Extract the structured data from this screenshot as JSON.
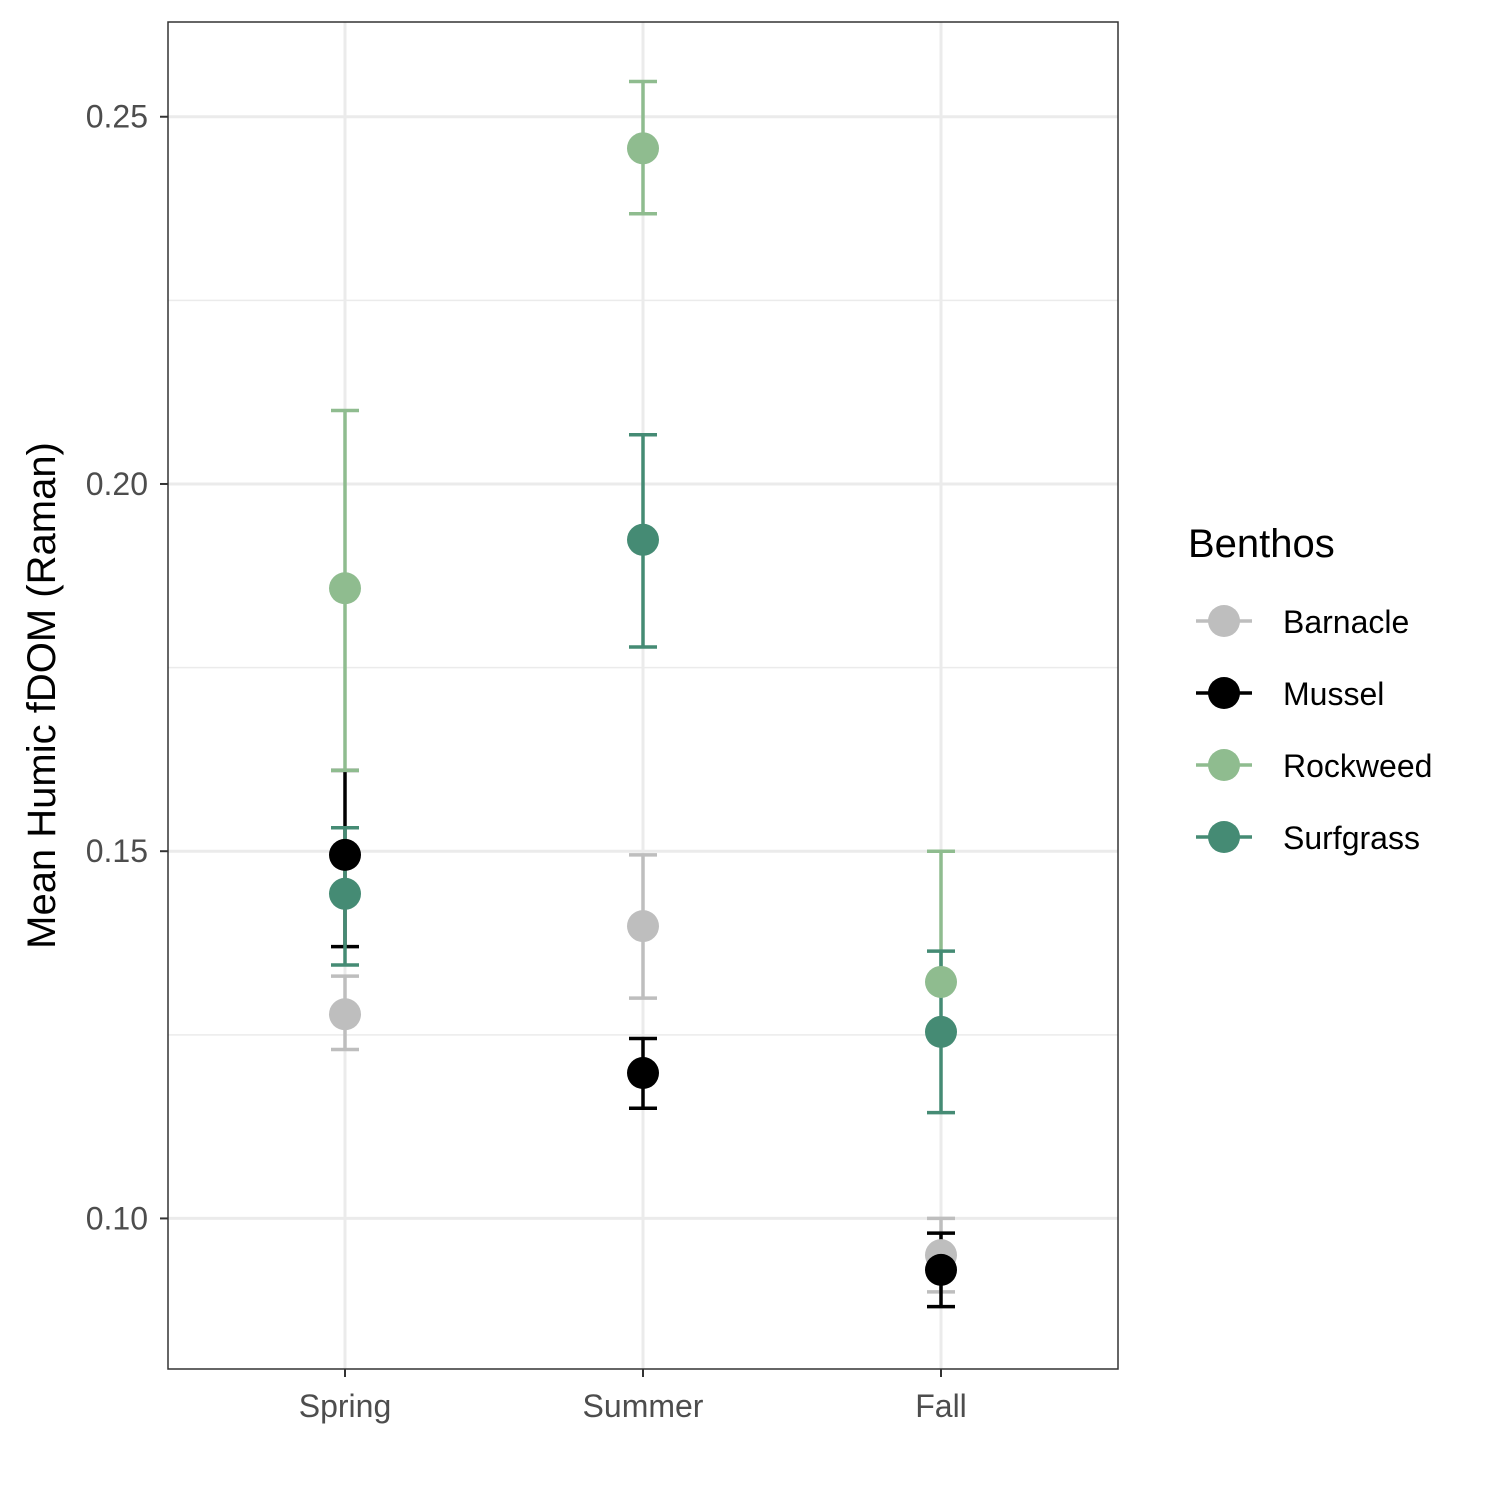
{
  "chart_data": {
    "type": "scatter",
    "subtype": "point-with-error-bars",
    "categories": [
      "Spring",
      "Summer",
      "Fall"
    ],
    "ylabel": "Mean Humic fDOM (Raman)",
    "xlabel": "",
    "ylim": [
      0.0795,
      0.2629
    ],
    "y_ticks": [
      0.1,
      0.15,
      0.2,
      0.25
    ],
    "y_tick_labels": [
      "0.10",
      "0.15",
      "0.20",
      "0.25"
    ],
    "y_minor_ticks": [
      0.125,
      0.175,
      0.225
    ],
    "grid": true,
    "legend": {
      "title": "Benthos",
      "position": "right"
    },
    "series": [
      {
        "name": "Barnacle",
        "color": "#bebebe",
        "values": [
          0.1278,
          0.1398,
          0.095
        ],
        "lower": [
          0.123,
          0.13,
          0.09
        ],
        "upper": [
          0.133,
          0.1495,
          0.1
        ]
      },
      {
        "name": "Mussel",
        "color": "#000000",
        "values": [
          0.1495,
          0.1198,
          0.093
        ],
        "lower": [
          0.137,
          0.115,
          0.088
        ],
        "upper": [
          0.161,
          0.1245,
          0.098
        ]
      },
      {
        "name": "Rockweed",
        "color": "#8fbc8f",
        "values": [
          0.1858,
          0.2457,
          0.1322
        ],
        "lower": [
          0.161,
          0.2368,
          0.132
        ],
        "upper": [
          0.21,
          0.2548,
          0.15
        ]
      },
      {
        "name": "Surfgrass",
        "color": "#458b74",
        "values": [
          0.1442,
          0.1924,
          0.1254
        ],
        "lower": [
          0.1345,
          0.1778,
          0.1144
        ],
        "upper": [
          0.1532,
          0.2067,
          0.1364
        ]
      }
    ]
  }
}
